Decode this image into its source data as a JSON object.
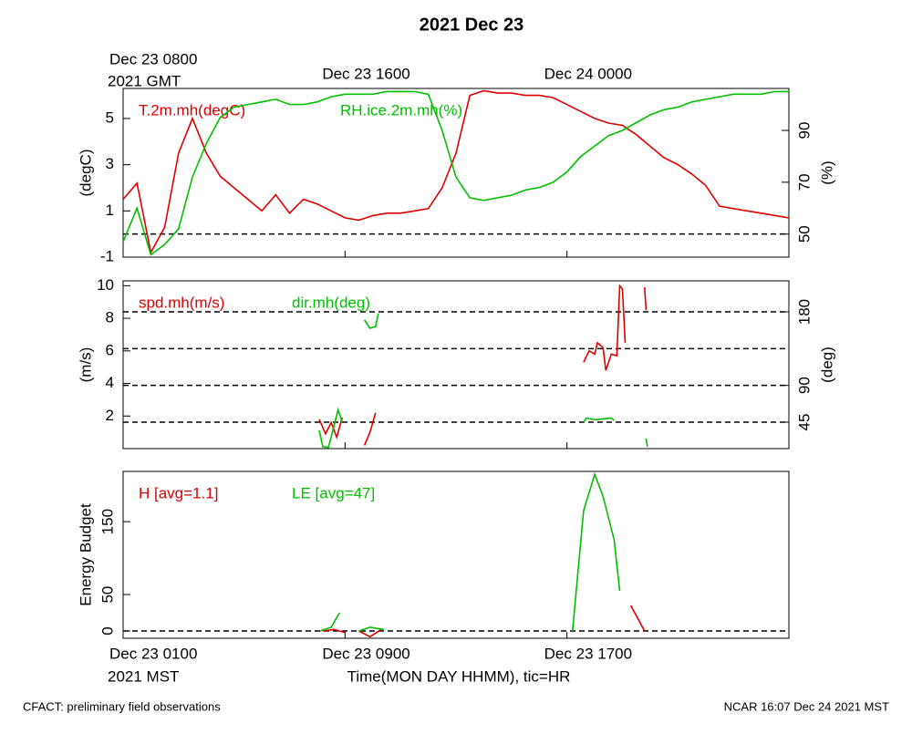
{
  "title": "2021 Dec 23",
  "top_axis": {
    "ticks": [
      {
        "value": 0,
        "label": "Dec 23 0800"
      },
      {
        "value": 8,
        "label": "Dec 23 1600"
      },
      {
        "value": 16,
        "label": "Dec 24 0000"
      }
    ],
    "zone": "2021 GMT"
  },
  "bottom_axis": {
    "ticks": [
      {
        "value": 0,
        "label": "Dec 23 0100"
      },
      {
        "value": 8,
        "label": "Dec 23 0900"
      },
      {
        "value": 16,
        "label": "Dec 23 1700"
      }
    ],
    "zone": "2021 MST",
    "xlabel": "Time(MON DAY HHMM), tic=HR"
  },
  "footer": {
    "left": "CFACT: preliminary field observations",
    "right": "NCAR 16:07 Dec 24 2021 MST"
  },
  "chart_data": [
    {
      "type": "line",
      "xlim": [
        0,
        24
      ],
      "ylabel": "(degC)",
      "y2label": "(%)",
      "ylim": [
        -1,
        6.3
      ],
      "yticks": [
        -1,
        1,
        3,
        5
      ],
      "y2lim": [
        41.1,
        106.2
      ],
      "y2ticks": [
        50,
        70,
        90
      ],
      "hline": 0,
      "x": [
        0,
        0.5,
        1,
        1.5,
        2,
        2.5,
        3,
        3.5,
        4,
        4.5,
        5,
        5.5,
        6,
        6.5,
        7,
        7.5,
        8,
        8.5,
        9,
        9.5,
        10,
        10.5,
        11,
        11.5,
        12,
        12.5,
        13,
        13.5,
        14,
        14.5,
        15,
        15.5,
        16,
        16.5,
        17,
        17.5,
        18,
        18.5,
        19,
        19.5,
        20,
        20.5,
        21,
        21.5,
        22,
        22.5,
        23,
        23.5,
        24
      ],
      "series": [
        {
          "name": "T.2m.mh(degC)",
          "color": "#e00000",
          "values": [
            1.5,
            2.2,
            -0.8,
            0.3,
            3.5,
            5.0,
            3.5,
            2.5,
            2.0,
            1.5,
            1.0,
            1.7,
            0.9,
            1.5,
            1.3,
            1.0,
            0.7,
            0.6,
            0.8,
            0.9,
            0.9,
            1.0,
            1.1,
            2.0,
            3.5,
            6.0,
            6.2,
            6.1,
            6.1,
            6.0,
            6.0,
            5.9,
            5.6,
            5.3,
            5.0,
            4.8,
            4.7,
            4.3,
            3.8,
            3.3,
            3.0,
            2.6,
            2.1,
            1.2,
            1.1,
            1.0,
            0.9,
            0.8,
            0.7
          ]
        },
        {
          "name": "RH.ice.2m.mh(%)",
          "color": "#00c000",
          "axis": "y2",
          "values": [
            47,
            60,
            42,
            46,
            52,
            72,
            85,
            95,
            99,
            100,
            101,
            102,
            100,
            100,
            101,
            103,
            104,
            104,
            104,
            105,
            105,
            105,
            104,
            90,
            72,
            64,
            63,
            64,
            65,
            67,
            68,
            70,
            74,
            80,
            84,
            88,
            90,
            93,
            96,
            98,
            99,
            101,
            102,
            103,
            104,
            104,
            104,
            105,
            105
          ]
        }
      ]
    },
    {
      "type": "line",
      "xlim": [
        0,
        24
      ],
      "ylabel": "(m/s)",
      "y2label": "(deg)",
      "ylim": [
        0,
        10.3
      ],
      "yticks": [
        2,
        4,
        6,
        8,
        10
      ],
      "y2lim": [
        12.6,
        218
      ],
      "y2ticks": [
        45,
        90,
        180
      ],
      "y2_grid": [
        45,
        90,
        135,
        180
      ],
      "series": [
        {
          "name": "spd.mh(m/s)",
          "color": "#e00000",
          "x": [
            7.07,
            7.3,
            7.5,
            7.7,
            7.9,
            8.3,
            8.7,
            8.9,
            9.1,
            13,
            16.6,
            16.8,
            17.0,
            17.1,
            17.3,
            17.4,
            17.6,
            17.8,
            17.9,
            18.0,
            18.1,
            18.4,
            18.8,
            18.85
          ],
          "values": [
            1.8,
            0.9,
            1.6,
            0.7,
            1.9,
            null,
            0.2,
            1.0,
            2.2,
            null,
            5.3,
            6.0,
            5.8,
            6.5,
            6.2,
            4.8,
            5.8,
            5.7,
            10.0,
            9.8,
            6.5,
            null,
            9.9,
            8.5
          ]
        },
        {
          "name": "dir.mh(deg)",
          "color": "#00c000",
          "axis": "y2",
          "x": [
            7.07,
            7.2,
            7.4,
            7.6,
            7.75,
            7.9,
            8.3,
            8.7,
            8.9,
            9.1,
            9.2,
            13,
            16.6,
            16.7,
            17.0,
            17.3,
            17.6,
            17.7,
            18.4,
            18.85,
            18.9
          ],
          "values": [
            35,
            15,
            14,
            40,
            60,
            45,
            null,
            170,
            160,
            162,
            178,
            null,
            45,
            50,
            48,
            49,
            50,
            47,
            null,
            25,
            15
          ]
        }
      ]
    },
    {
      "type": "line",
      "xlim": [
        0,
        24
      ],
      "ylabel": "Energy Budget",
      "ylim": [
        -10,
        219
      ],
      "yticks": [
        0,
        50,
        150
      ],
      "hline": 0,
      "series": [
        {
          "name": "H [avg=1.1]",
          "color": "#e00000",
          "x": [
            7.2,
            7.6,
            8.0,
            8.2,
            8.5,
            8.9,
            9.3,
            12,
            18.3,
            18.8
          ],
          "values": [
            0,
            2,
            -2,
            null,
            0,
            -8,
            2,
            null,
            35,
            0
          ]
        },
        {
          "name": "LE [avg=47]",
          "color": "#00c000",
          "x": [
            7.1,
            7.5,
            7.8,
            8.2,
            8.5,
            8.9,
            9.4,
            12,
            16.2,
            16.6,
            17.0,
            17.3,
            17.7,
            17.9
          ],
          "values": [
            0,
            5,
            25,
            null,
            0,
            5,
            2,
            null,
            0,
            165,
            215,
            185,
            125,
            55
          ]
        }
      ]
    }
  ]
}
